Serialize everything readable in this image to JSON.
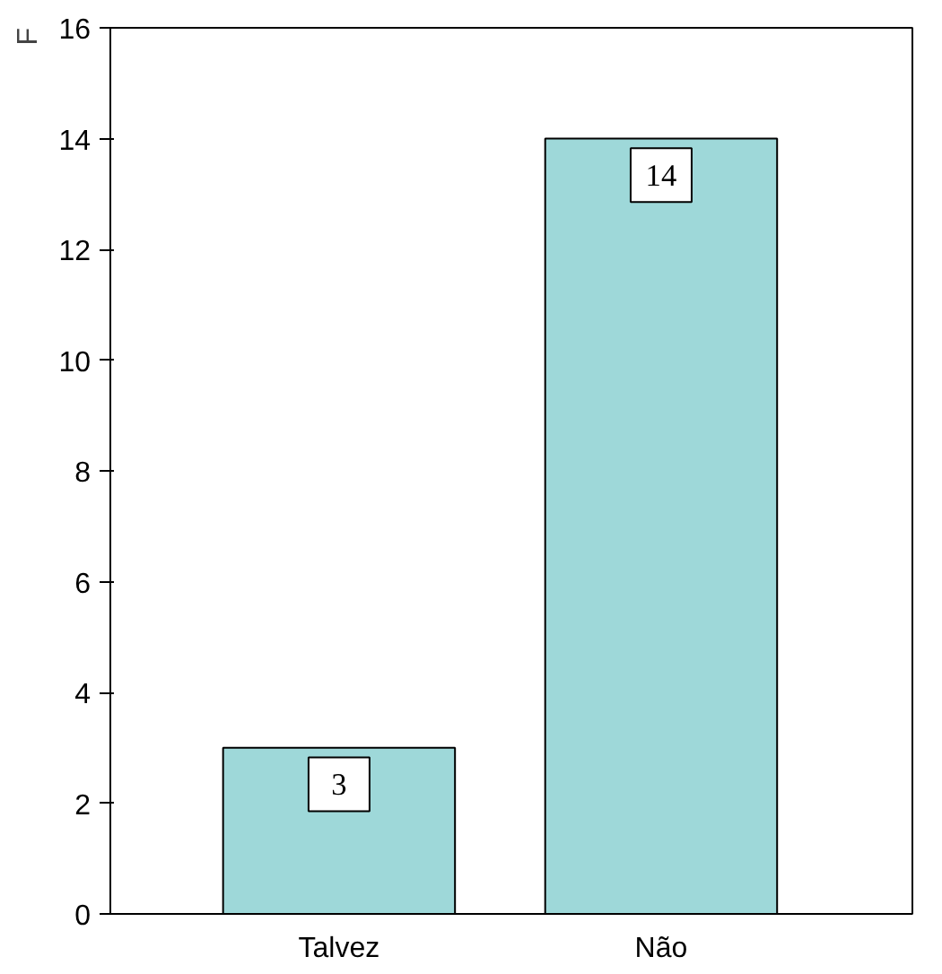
{
  "chart_data": {
    "type": "bar",
    "ylabel": "F",
    "categories": [
      "Talvez",
      "Não"
    ],
    "values": [
      3,
      14
    ],
    "color": "#9ed8d9",
    "ylim": [
      0,
      16
    ],
    "yticks": [
      0,
      2,
      4,
      6,
      8,
      10,
      12,
      14,
      16
    ],
    "data_labels": true,
    "grid": false
  }
}
